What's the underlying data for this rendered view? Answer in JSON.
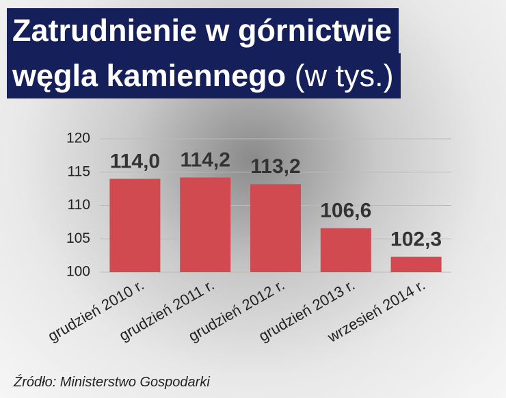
{
  "chart_data": {
    "type": "bar",
    "title_lines": [
      "Zatrudnienie w górnictwie",
      "węgla kamiennego"
    ],
    "subtitle": "(w tys.)",
    "categories": [
      "grudzień 2010 r.",
      "grudzień 2011 r.",
      "grudzień 2012 r.",
      "grudzień 2013 r.",
      "wrzesień 2014 r."
    ],
    "values": [
      114.0,
      114.2,
      113.2,
      106.6,
      102.3
    ],
    "value_labels": [
      "114,0",
      "114,2",
      "113,2",
      "106,6",
      "102,3"
    ],
    "color": "#d04a4f",
    "ylim": [
      100,
      120
    ],
    "yticks": [
      100,
      105,
      110,
      115,
      120
    ],
    "grid": true,
    "source": "Źródło: Ministerstwo Gospodarki"
  }
}
